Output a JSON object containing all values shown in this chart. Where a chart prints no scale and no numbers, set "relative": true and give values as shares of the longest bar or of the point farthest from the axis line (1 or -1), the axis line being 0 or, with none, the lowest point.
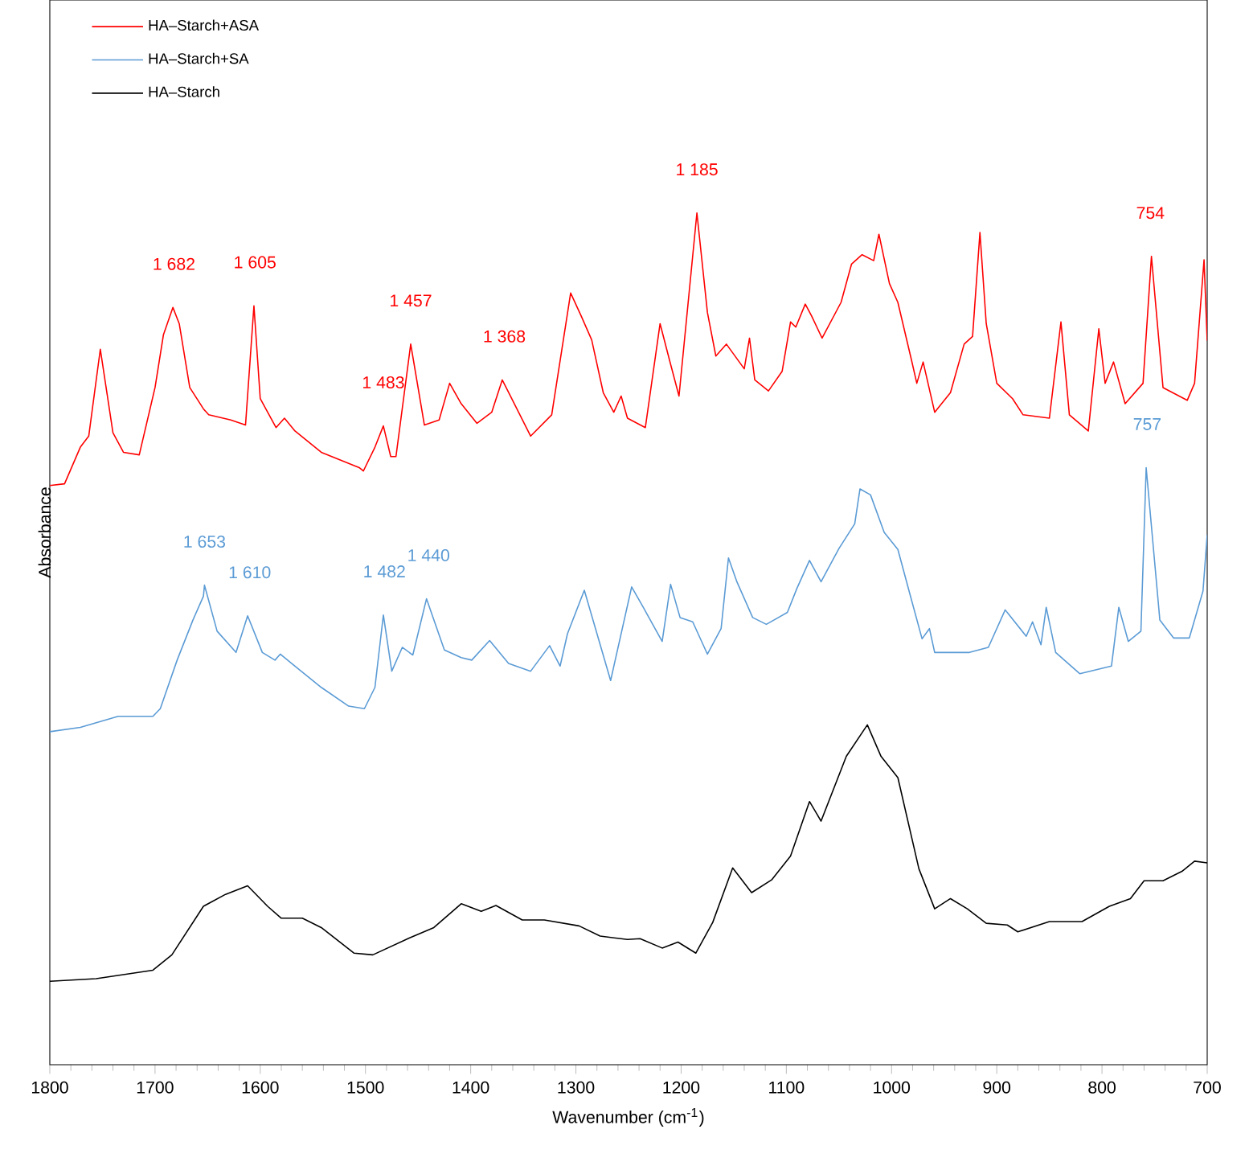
{
  "chart_data": {
    "type": "line",
    "relative": true,
    "xlabel": "Wavenumber (cm$^{-1}$)",
    "ylabel": "Absorbance",
    "xlim": [
      1800,
      700
    ],
    "xticks": [
      1800,
      1700,
      1600,
      1500,
      1400,
      1300,
      1200,
      1100,
      1000,
      900,
      800,
      700
    ],
    "legend": "top left",
    "marker": "none",
    "line_style": "solid",
    "series": [
      {
        "name": "HA–Starch+ASA",
        "color": "#ff0000",
        "x": [
          1800,
          1786,
          1771,
          1763,
          1752,
          1740,
          1730,
          1715,
          1700,
          1692,
          1683,
          1677,
          1667,
          1654,
          1649,
          1628,
          1614,
          1606,
          1600,
          1585,
          1577,
          1567,
          1542,
          1506,
          1502,
          1491,
          1483,
          1476,
          1471,
          1457,
          1444,
          1430,
          1420,
          1409,
          1394,
          1380,
          1370,
          1361,
          1343,
          1323,
          1305,
          1295,
          1285,
          1274,
          1264,
          1257,
          1251,
          1234,
          1220,
          1211,
          1202,
          1185,
          1175,
          1167,
          1157,
          1140,
          1135,
          1130,
          1117,
          1104,
          1096,
          1091,
          1082,
          1076,
          1066,
          1048,
          1038,
          1028,
          1017,
          1012,
          1002,
          994,
          981,
          976,
          970,
          959,
          944,
          931,
          923,
          916,
          910,
          900,
          885,
          875,
          850,
          839,
          831,
          813,
          803,
          797,
          789,
          778,
          761,
          753,
          742,
          719,
          712,
          703,
          700
        ],
        "values": [
          0.68,
          0.682,
          0.725,
          0.738,
          0.84,
          0.742,
          0.719,
          0.716,
          0.795,
          0.857,
          0.889,
          0.87,
          0.795,
          0.77,
          0.763,
          0.757,
          0.751,
          0.891,
          0.782,
          0.748,
          0.759,
          0.744,
          0.719,
          0.701,
          0.697,
          0.725,
          0.75,
          0.714,
          0.714,
          0.846,
          0.751,
          0.757,
          0.8,
          0.776,
          0.753,
          0.766,
          0.804,
          0.782,
          0.738,
          0.763,
          0.906,
          0.879,
          0.851,
          0.789,
          0.766,
          0.785,
          0.759,
          0.748,
          0.87,
          0.827,
          0.785,
          1.0,
          0.883,
          0.832,
          0.846,
          0.817,
          0.853,
          0.804,
          0.791,
          0.814,
          0.872,
          0.866,
          0.893,
          0.879,
          0.853,
          0.895,
          0.94,
          0.951,
          0.944,
          0.975,
          0.917,
          0.895,
          0.827,
          0.8,
          0.825,
          0.766,
          0.789,
          0.846,
          0.855,
          0.977,
          0.87,
          0.8,
          0.782,
          0.763,
          0.759,
          0.872,
          0.763,
          0.744,
          0.864,
          0.8,
          0.825,
          0.776,
          0.8,
          0.949,
          0.795,
          0.78,
          0.8,
          0.945,
          0.85
        ]
      },
      {
        "name": "HA–Starch+SA",
        "color": "#5b9bd5",
        "x": [
          1800,
          1771,
          1735,
          1702,
          1695,
          1679,
          1664,
          1654,
          1653,
          1641,
          1623,
          1612,
          1598,
          1586,
          1581,
          1567,
          1542,
          1516,
          1501,
          1491,
          1483,
          1475,
          1465,
          1455,
          1442,
          1425,
          1409,
          1399,
          1382,
          1364,
          1343,
          1325,
          1315,
          1308,
          1292,
          1267,
          1247,
          1236,
          1218,
          1210,
          1201,
          1189,
          1175,
          1162,
          1155,
          1147,
          1132,
          1119,
          1099,
          1090,
          1078,
          1067,
          1050,
          1035,
          1030,
          1020,
          1007,
          994,
          982,
          971,
          964,
          959,
          926,
          908,
          892,
          872,
          866,
          858,
          853,
          844,
          821,
          791,
          784,
          775,
          763,
          758,
          745,
          732,
          717,
          704,
          700
        ],
        "values": [
          0.391,
          0.396,
          0.409,
          0.409,
          0.418,
          0.475,
          0.522,
          0.55,
          0.563,
          0.509,
          0.484,
          0.527,
          0.484,
          0.475,
          0.482,
          0.468,
          0.443,
          0.421,
          0.418,
          0.443,
          0.528,
          0.462,
          0.49,
          0.481,
          0.547,
          0.487,
          0.478,
          0.475,
          0.498,
          0.471,
          0.462,
          0.492,
          0.468,
          0.506,
          0.557,
          0.451,
          0.561,
          0.537,
          0.497,
          0.564,
          0.525,
          0.52,
          0.482,
          0.512,
          0.595,
          0.567,
          0.525,
          0.517,
          0.531,
          0.559,
          0.592,
          0.567,
          0.606,
          0.635,
          0.676,
          0.669,
          0.625,
          0.605,
          0.55,
          0.5,
          0.512,
          0.484,
          0.484,
          0.49,
          0.534,
          0.503,
          0.52,
          0.493,
          0.537,
          0.484,
          0.459,
          0.468,
          0.537,
          0.497,
          0.509,
          0.701,
          0.522,
          0.501,
          0.501,
          0.556,
          0.622
        ]
      },
      {
        "name": "HA–Starch",
        "color": "#000000",
        "x": [
          1800,
          1756,
          1702,
          1684,
          1654,
          1633,
          1612,
          1593,
          1580,
          1560,
          1542,
          1511,
          1493,
          1458,
          1435,
          1409,
          1390,
          1376,
          1351,
          1330,
          1297,
          1277,
          1251,
          1239,
          1218,
          1203,
          1186,
          1170,
          1151,
          1133,
          1114,
          1096,
          1078,
          1067,
          1043,
          1023,
          1010,
          994,
          974,
          959,
          944,
          928,
          910,
          890,
          880,
          850,
          819,
          793,
          773,
          760,
          742,
          724,
          712,
          700
        ],
        "values": [
          0.098,
          0.101,
          0.111,
          0.129,
          0.186,
          0.2,
          0.21,
          0.186,
          0.172,
          0.172,
          0.161,
          0.131,
          0.129,
          0.149,
          0.161,
          0.189,
          0.18,
          0.187,
          0.17,
          0.17,
          0.163,
          0.151,
          0.147,
          0.148,
          0.137,
          0.144,
          0.131,
          0.167,
          0.231,
          0.202,
          0.217,
          0.245,
          0.309,
          0.286,
          0.362,
          0.399,
          0.362,
          0.337,
          0.23,
          0.183,
          0.195,
          0.183,
          0.166,
          0.164,
          0.156,
          0.168,
          0.168,
          0.186,
          0.195,
          0.216,
          0.216,
          0.227,
          0.239,
          0.237
        ]
      }
    ],
    "annotations": [
      {
        "text": "1 682",
        "x": 1682,
        "y": 0.889
      },
      {
        "text": "1 605",
        "x": 1605,
        "y": 0.891
      },
      {
        "text": "1 483",
        "x": 1483,
        "y": 0.75
      },
      {
        "text": "1 457",
        "x": 1457,
        "y": 0.846
      },
      {
        "text": "1 368",
        "x": 1368,
        "y": 0.804
      },
      {
        "text": "1 185",
        "x": 1185,
        "y": 1.0
      },
      {
        "text": "754",
        "x": 754,
        "y": 0.949
      },
      {
        "text": "1 653",
        "x": 1653,
        "y": 0.563
      },
      {
        "text": "1 610",
        "x": 1610,
        "y": 0.527
      },
      {
        "text": "1 482",
        "x": 1482,
        "y": 0.528
      },
      {
        "text": "1 440",
        "x": 1440,
        "y": 0.547
      },
      {
        "text": "757",
        "x": 757,
        "y": 0.701
      }
    ]
  }
}
